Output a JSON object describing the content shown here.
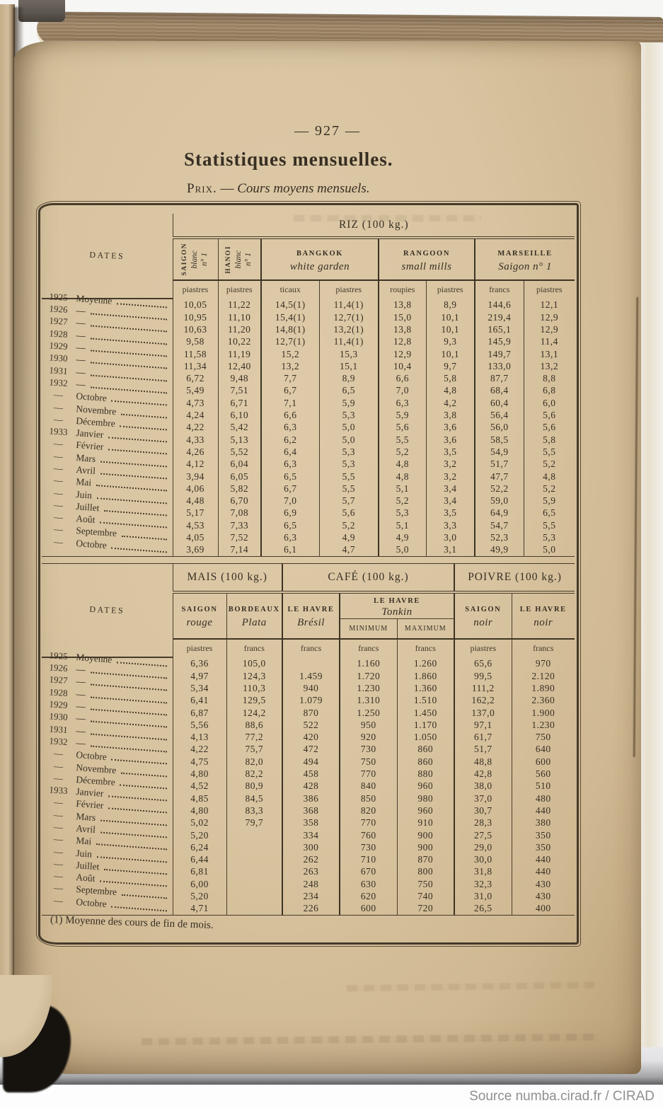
{
  "page": {
    "number": "— 927 —",
    "title": "Statistiques mensuelles.",
    "subtitle": {
      "prefix": "Prix.",
      "separator": "—",
      "text": "Cours moyens mensuels."
    },
    "footnote": "(1) Moyenne des cours de fin de mois."
  },
  "attribution": "Source numba.cirad.fr / CIRAD",
  "colors": {
    "paper": "#d8c4a0",
    "ink": "#372e23",
    "rule": "#453a2a"
  },
  "dates_header": "Dates",
  "dates": [
    {
      "year": "1925",
      "label": "Moyenne"
    },
    {
      "year": "1926",
      "label": "—"
    },
    {
      "year": "1927",
      "label": "—"
    },
    {
      "year": "1928",
      "label": "—"
    },
    {
      "year": "1929",
      "label": "—"
    },
    {
      "year": "1930",
      "label": "—"
    },
    {
      "year": "1931",
      "label": "—"
    },
    {
      "year": "1932",
      "label": "—"
    },
    {
      "year": "—",
      "label": "Octobre"
    },
    {
      "year": "—",
      "label": "Novembre"
    },
    {
      "year": "—",
      "label": "Décembre"
    },
    {
      "year": "1933",
      "label": "Janvier"
    },
    {
      "year": "—",
      "label": "Février"
    },
    {
      "year": "—",
      "label": "Mars"
    },
    {
      "year": "—",
      "label": "Avril"
    },
    {
      "year": "—",
      "label": "Mai"
    },
    {
      "year": "—",
      "label": "Juin"
    },
    {
      "year": "—",
      "label": "Juillet"
    },
    {
      "year": "—",
      "label": "Août"
    },
    {
      "year": "—",
      "label": "Septembre"
    },
    {
      "year": "—",
      "label": "Octobre"
    }
  ],
  "riz": {
    "title": "RIZ (100 kg.)",
    "groups": [
      {
        "city": "SAIGON",
        "line2": "blanc",
        "line3": "n° 1"
      },
      {
        "city": "HANOI",
        "line2": "blanc",
        "line3": "n° 1"
      },
      {
        "city": "BANGKOK",
        "sub": "white garden"
      },
      {
        "city": "RANGOON",
        "sub": "small mills"
      },
      {
        "city": "MARSEILLE",
        "sub": "Saigon n° 1"
      }
    ],
    "units": [
      "piastres",
      "piastres",
      "ticaux",
      "piastres",
      "roupies",
      "piastres",
      "francs",
      "piastres"
    ],
    "rows": [
      [
        "10,05",
        "11,22",
        "14,5(1)",
        "11,4(1)",
        "13,8",
        "8,9",
        "144,6",
        "12,1"
      ],
      [
        "10,95",
        "11,10",
        "15,4(1)",
        "12,7(1)",
        "15,0",
        "10,1",
        "219,4",
        "12,9"
      ],
      [
        "10,63",
        "11,20",
        "14,8(1)",
        "13,2(1)",
        "13,8",
        "10,1",
        "165,1",
        "12,9"
      ],
      [
        "9,58",
        "10,22",
        "12,7(1)",
        "11,4(1)",
        "12,8",
        "9,3",
        "145,9",
        "11,4"
      ],
      [
        "11,58",
        "11,19",
        "15,2",
        "15,3",
        "12,9",
        "10,1",
        "149,7",
        "13,1"
      ],
      [
        "11,34",
        "12,40",
        "13,2",
        "15,1",
        "10,4",
        "9,7",
        "133,0",
        "13,2"
      ],
      [
        "6,72",
        "9,48",
        "7,7",
        "8,9",
        "6,6",
        "5,8",
        "87,7",
        "8,8"
      ],
      [
        "5,49",
        "7,51",
        "6,7",
        "6,5",
        "7,0",
        "4,8",
        "68,4",
        "6,8"
      ],
      [
        "4,73",
        "6,71",
        "7,1",
        "5,9",
        "6,3",
        "4,2",
        "60,4",
        "6,0"
      ],
      [
        "4,24",
        "6,10",
        "6,6",
        "5,3",
        "5,9",
        "3,8",
        "56,4",
        "5,6"
      ],
      [
        "4,22",
        "5,42",
        "6,3",
        "5,0",
        "5,6",
        "3,6",
        "56,0",
        "5,6"
      ],
      [
        "4,33",
        "5,13",
        "6,2",
        "5,0",
        "5,5",
        "3,6",
        "58,5",
        "5,8"
      ],
      [
        "4,26",
        "5,52",
        "6,4",
        "5,3",
        "5,2",
        "3,5",
        "54,9",
        "5,5"
      ],
      [
        "4,12",
        "6,04",
        "6,3",
        "5,3",
        "4,8",
        "3,2",
        "51,7",
        "5,2"
      ],
      [
        "3,94",
        "6,05",
        "6,5",
        "5,5",
        "4,8",
        "3,2",
        "47,7",
        "4,8"
      ],
      [
        "4,06",
        "5,82",
        "6,7",
        "5,5",
        "5,1",
        "3,4",
        "52,2",
        "5,2"
      ],
      [
        "4,48",
        "6,70",
        "7,0",
        "5,7",
        "5,2",
        "3,4",
        "59,0",
        "5,9"
      ],
      [
        "5,17",
        "7,08",
        "6,9",
        "5,6",
        "5,3",
        "3,5",
        "64,9",
        "6,5"
      ],
      [
        "4,53",
        "7,33",
        "6,5",
        "5,2",
        "5,1",
        "3,3",
        "54,7",
        "5,5"
      ],
      [
        "4,05",
        "7,52",
        "6,3",
        "4,9",
        "4,9",
        "3,0",
        "52,3",
        "5,3"
      ],
      [
        "3,69",
        "7,14",
        "6,1",
        "4,7",
        "5,0",
        "3,1",
        "49,9",
        "5,0"
      ]
    ]
  },
  "second": {
    "sections": [
      {
        "title": "MAIS (100 kg.)"
      },
      {
        "title": "CAFÉ (100 kg.)"
      },
      {
        "title": "POIVRE (100 kg.)"
      }
    ],
    "cols": [
      {
        "city": "SAIGON",
        "sub": "rouge"
      },
      {
        "city": "BORDEAUX",
        "sub": "Plata"
      },
      {
        "city": "LE HAVRE",
        "sub": "Brésil"
      },
      {
        "city": "SAIGON",
        "sub": "noir"
      },
      {
        "city": "LE HAVRE",
        "sub": "noir"
      }
    ],
    "tonkin": {
      "city": "LE HAVRE",
      "sub": "Tonkin",
      "min": "MINIMUM",
      "max": "MAXIMUM"
    },
    "units": [
      "piastres",
      "francs",
      "francs",
      "francs",
      "francs",
      "piastres",
      "francs"
    ],
    "rows": [
      [
        "6,36",
        "105,0",
        "",
        "1.160",
        "1.260",
        "65,6",
        "970"
      ],
      [
        "4,97",
        "124,3",
        "1.459",
        "1.720",
        "1.860",
        "99,5",
        "2.120"
      ],
      [
        "5,34",
        "110,3",
        "940",
        "1.230",
        "1.360",
        "111,2",
        "1.890"
      ],
      [
        "6,41",
        "129,5",
        "1.079",
        "1.310",
        "1.510",
        "162,2",
        "2.360"
      ],
      [
        "6,87",
        "124,2",
        "870",
        "1.250",
        "1.450",
        "137,0",
        "1.900"
      ],
      [
        "5,56",
        "88,6",
        "522",
        "950",
        "1.170",
        "97,1",
        "1.230"
      ],
      [
        "4,13",
        "77,2",
        "420",
        "920",
        "1.050",
        "61,7",
        "750"
      ],
      [
        "4,22",
        "75,7",
        "472",
        "730",
        "860",
        "51,7",
        "640"
      ],
      [
        "4,75",
        "82,0",
        "494",
        "750",
        "860",
        "48,8",
        "600"
      ],
      [
        "4,80",
        "82,2",
        "458",
        "770",
        "880",
        "42,8",
        "560"
      ],
      [
        "4,52",
        "80,9",
        "428",
        "840",
        "960",
        "38,0",
        "510"
      ],
      [
        "4,85",
        "84,5",
        "386",
        "850",
        "980",
        "37,0",
        "480"
      ],
      [
        "4,80",
        "83,3",
        "368",
        "820",
        "960",
        "30,7",
        "440"
      ],
      [
        "5,02",
        "79,7",
        "358",
        "770",
        "910",
        "28,3",
        "380"
      ],
      [
        "5,20",
        "",
        "334",
        "760",
        "900",
        "27,5",
        "350"
      ],
      [
        "6,24",
        "",
        "300",
        "730",
        "900",
        "29,0",
        "350"
      ],
      [
        "6,44",
        "",
        "262",
        "710",
        "870",
        "30,0",
        "440"
      ],
      [
        "6,81",
        "",
        "263",
        "670",
        "800",
        "31,8",
        "440"
      ],
      [
        "6,00",
        "",
        "248",
        "630",
        "750",
        "32,3",
        "430"
      ],
      [
        "5,20",
        "",
        "234",
        "620",
        "740",
        "31,0",
        "430"
      ],
      [
        "4,71",
        "",
        "226",
        "600",
        "720",
        "26,5",
        "400"
      ]
    ]
  }
}
